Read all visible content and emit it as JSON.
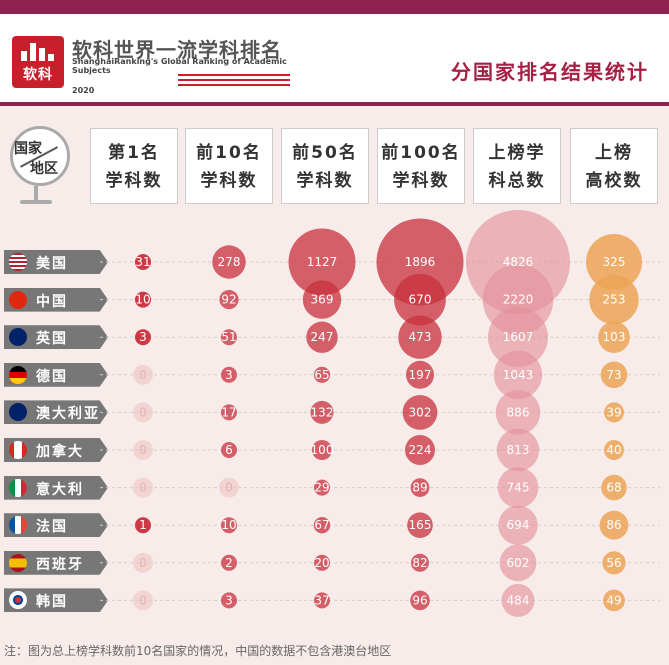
{
  "header": {
    "logo_title": "软科世界一流学科排名",
    "logo_sub": "ShanghaiRanking's Global Ranking of Academic Subjects",
    "logo_year": "2020",
    "logo_glyph": "软科",
    "main_title": "分国家排名结果统计"
  },
  "corner": {
    "top": "国家",
    "bottom": "地区"
  },
  "footnote": "注：图为总上榜学科数前10名国家的情况，中国的数据不包含港澳台地区",
  "colors": {
    "bubble_red": "#c8303c",
    "bubble_total": "#e38d97",
    "bubble_uni": "#eca456",
    "header_bar": "#8e2350",
    "title": "#a61f45",
    "country_bg": "#777777"
  },
  "chart_data": {
    "type": "bubble",
    "columns": [
      {
        "line1": "第1名",
        "line2": "学科数"
      },
      {
        "line1": "前10名",
        "line2": "学科数"
      },
      {
        "line1": "前50名",
        "line2": "学科数"
      },
      {
        "line1": "前100名",
        "line2": "学科数"
      },
      {
        "line1": "上榜学",
        "line2": "科总数"
      },
      {
        "line1": "上榜",
        "line2": "高校数"
      }
    ],
    "countries": [
      {
        "name": "美国",
        "flag": "us-flag-icon",
        "values": [
          31,
          278,
          1127,
          1896,
          4826,
          325
        ]
      },
      {
        "name": "中国",
        "flag": "cn-flag-icon",
        "values": [
          10,
          92,
          369,
          670,
          2220,
          253
        ]
      },
      {
        "name": "英国",
        "flag": "uk-flag-icon",
        "values": [
          3,
          51,
          247,
          473,
          1607,
          103
        ]
      },
      {
        "name": "德国",
        "flag": "de-flag-icon",
        "values": [
          0,
          3,
          65,
          197,
          1043,
          73
        ]
      },
      {
        "name": "澳大利亚",
        "flag": "au-flag-icon",
        "values": [
          0,
          17,
          132,
          302,
          886,
          39
        ]
      },
      {
        "name": "加拿大",
        "flag": "ca-flag-icon",
        "values": [
          0,
          6,
          100,
          224,
          813,
          40
        ]
      },
      {
        "name": "意大利",
        "flag": "it-flag-icon",
        "values": [
          0,
          0,
          29,
          89,
          745,
          68
        ]
      },
      {
        "name": "法国",
        "flag": "fr-flag-icon",
        "values": [
          1,
          10,
          67,
          165,
          694,
          86
        ]
      },
      {
        "name": "西班牙",
        "flag": "es-flag-icon",
        "values": [
          0,
          2,
          20,
          82,
          602,
          56
        ]
      },
      {
        "name": "韩国",
        "flag": "kr-flag-icon",
        "values": [
          0,
          3,
          37,
          96,
          484,
          49
        ]
      }
    ]
  }
}
